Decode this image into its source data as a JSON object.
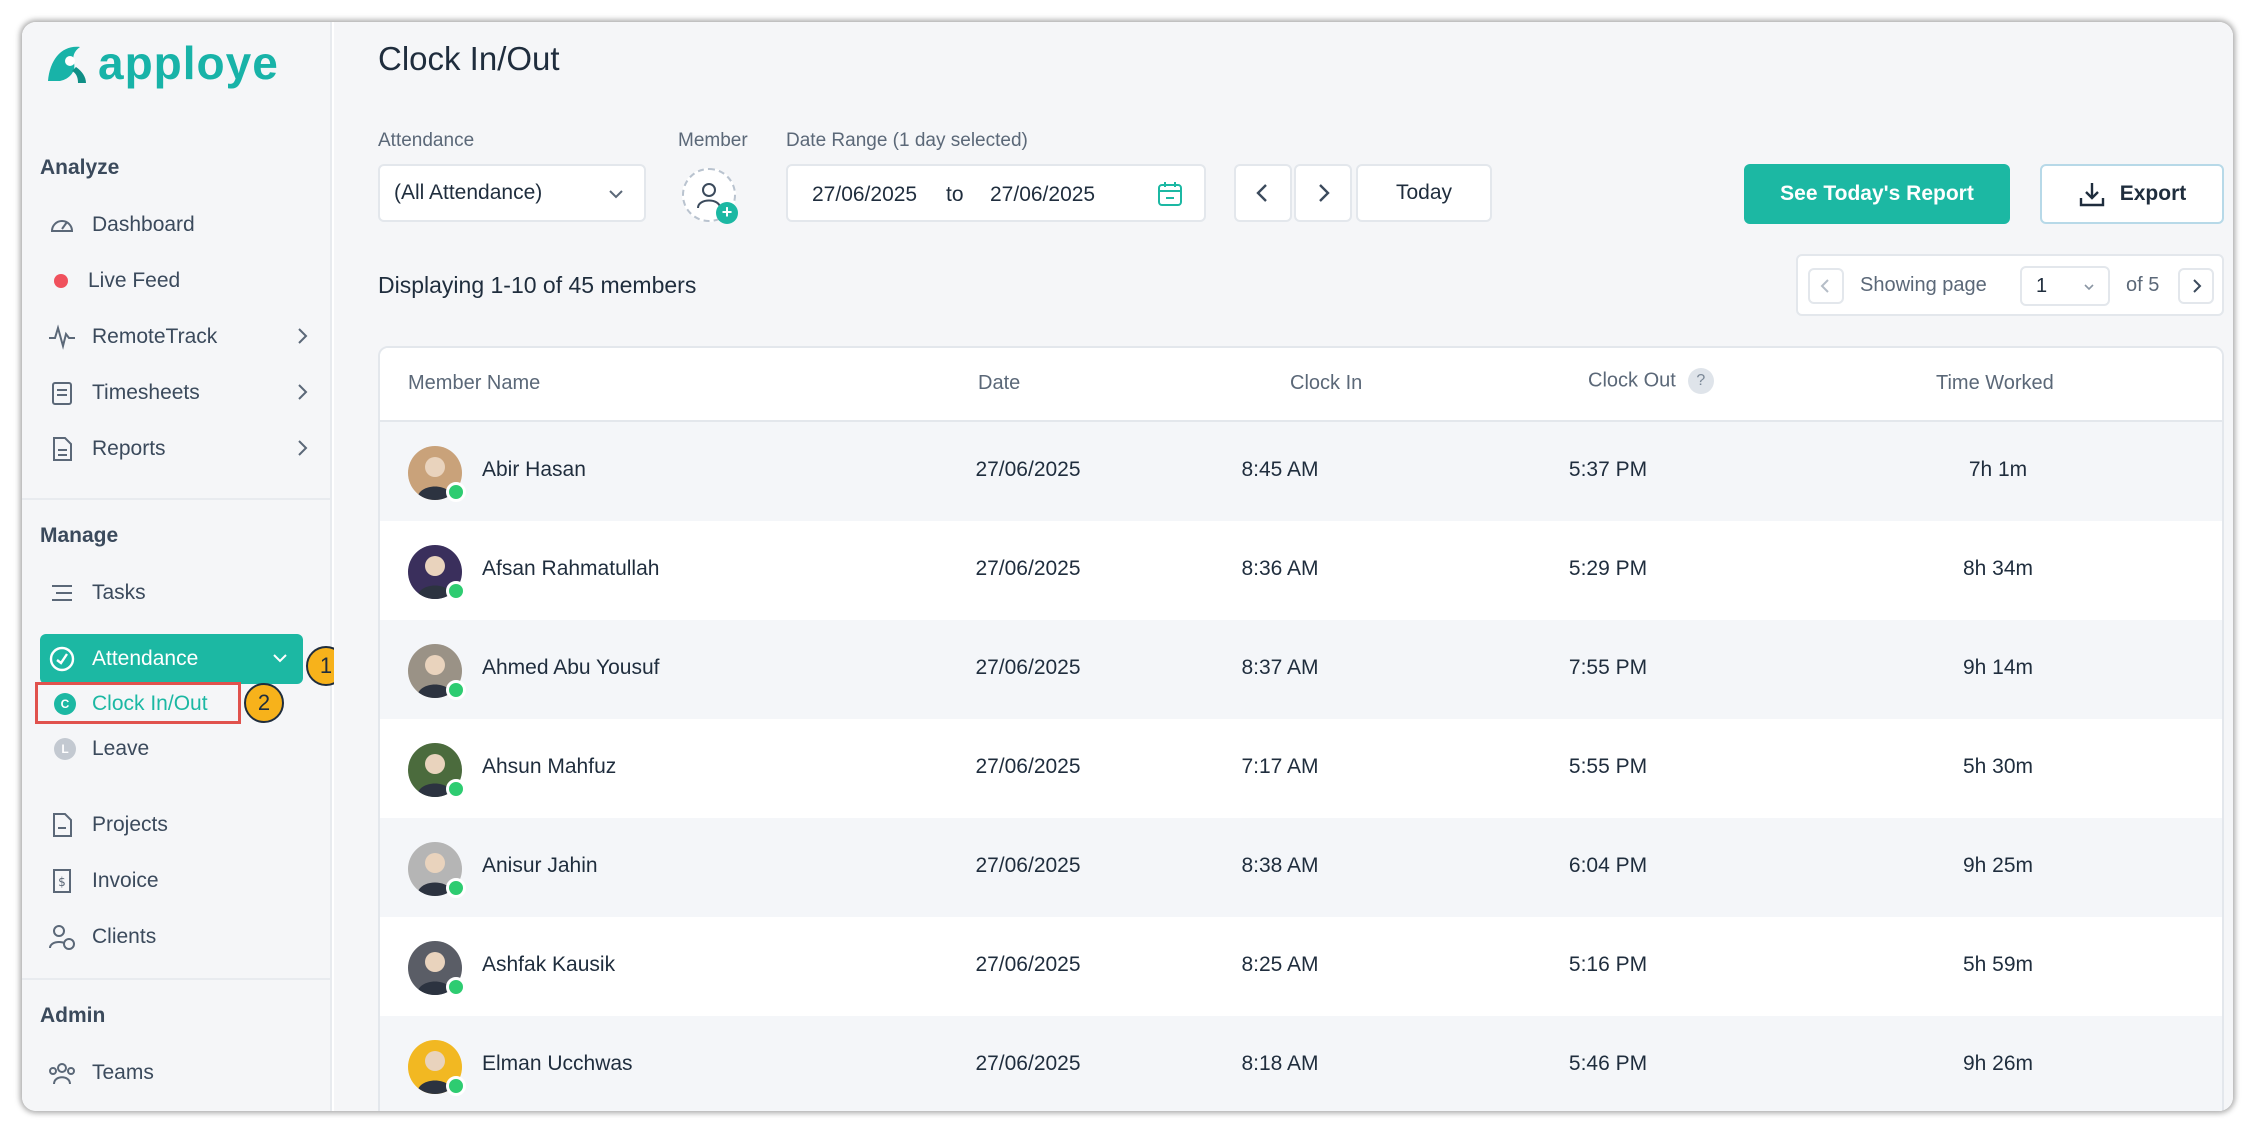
{
  "app": {
    "logo_text": "apploye",
    "accent": "#1cb8a3"
  },
  "sidebar": {
    "sections": {
      "analyze": "Analyze",
      "manage": "Manage",
      "admin": "Admin"
    },
    "analyze_items": [
      {
        "label": "Dashboard",
        "icon": "gauge-icon"
      },
      {
        "label": "Live Feed",
        "icon": "live-dot-icon"
      },
      {
        "label": "RemoteTrack",
        "icon": "pulse-icon"
      },
      {
        "label": "Timesheets",
        "icon": "timesheet-icon"
      },
      {
        "label": "Reports",
        "icon": "report-icon"
      }
    ],
    "manage_items": [
      {
        "label": "Tasks",
        "icon": "list-icon"
      },
      {
        "label": "Attendance",
        "icon": "attendance-icon"
      },
      {
        "label": "Projects",
        "icon": "project-icon"
      },
      {
        "label": "Invoice",
        "icon": "invoice-icon"
      },
      {
        "label": "Clients",
        "icon": "clients-icon"
      }
    ],
    "attendance_sub": [
      {
        "label": "Clock In/Out",
        "letter": "C"
      },
      {
        "label": "Leave",
        "letter": "L"
      }
    ],
    "admin_items": [
      {
        "label": "Teams",
        "icon": "teams-icon"
      }
    ],
    "annotations": [
      "1",
      "2"
    ]
  },
  "header": {
    "title": "Clock In/Out"
  },
  "filters": {
    "attendance_label": "Attendance",
    "attendance_value": "(All Attendance)",
    "member_label": "Member",
    "date_range_label": "Date Range (1 day selected)",
    "date_from": "27/06/2025",
    "date_to_word": "to",
    "date_to": "27/06/2025",
    "today_label": "Today"
  },
  "actions": {
    "report_label": "See Today's Report",
    "export_label": "Export"
  },
  "summary": {
    "display_text": "Displaying 1-10 of 45 members"
  },
  "pager": {
    "showing_label": "Showing page",
    "current_page": "1",
    "of_label": "of 5"
  },
  "table": {
    "columns": [
      "Member Name",
      "Date",
      "Clock In",
      "Clock Out",
      "Time Worked"
    ],
    "help_glyph": "?",
    "rows": [
      {
        "name": "Abir Hasan",
        "date": "27/06/2025",
        "clock_in": "8:45 AM",
        "clock_out": "5:37 PM",
        "worked": "7h 1m",
        "avatar_color": "#c9a27a"
      },
      {
        "name": "Afsan Rahmatullah",
        "date": "27/06/2025",
        "clock_in": "8:36 AM",
        "clock_out": "5:29 PM",
        "worked": "8h 34m",
        "avatar_color": "#3a2f5c"
      },
      {
        "name": "Ahmed Abu Yousuf",
        "date": "27/06/2025",
        "clock_in": "8:37 AM",
        "clock_out": "7:55 PM",
        "worked": "9h 14m",
        "avatar_color": "#9a9286"
      },
      {
        "name": "Ahsun Mahfuz",
        "date": "27/06/2025",
        "clock_in": "7:17 AM",
        "clock_out": "5:55 PM",
        "worked": "5h 30m",
        "avatar_color": "#4b6b3d"
      },
      {
        "name": "Anisur Jahin",
        "date": "27/06/2025",
        "clock_in": "8:38 AM",
        "clock_out": "6:04 PM",
        "worked": "9h 25m",
        "avatar_color": "#b5b5b5"
      },
      {
        "name": "Ashfak Kausik",
        "date": "27/06/2025",
        "clock_in": "8:25 AM",
        "clock_out": "5:16 PM",
        "worked": "5h 59m",
        "avatar_color": "#5a5d66"
      },
      {
        "name": "Elman Ucchwas",
        "date": "27/06/2025",
        "clock_in": "8:18 AM",
        "clock_out": "5:46 PM",
        "worked": "9h 26m",
        "avatar_color": "#f2b822"
      }
    ]
  }
}
